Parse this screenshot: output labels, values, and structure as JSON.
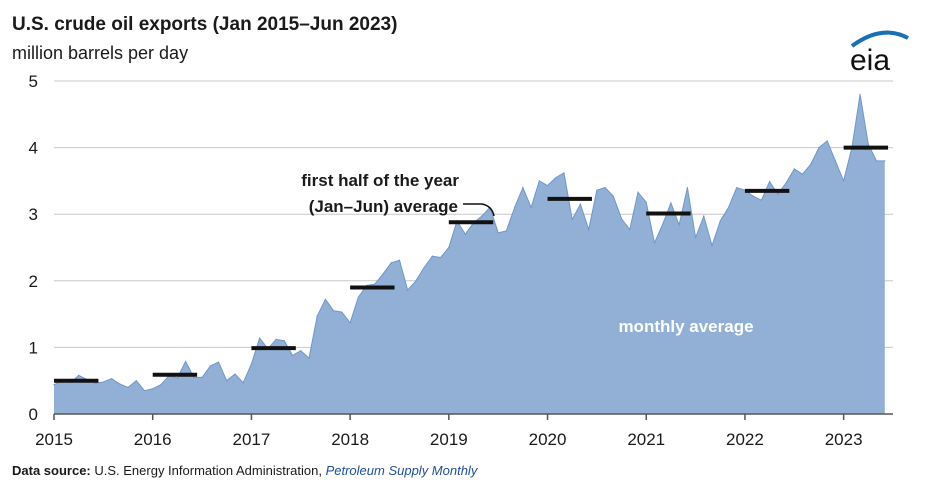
{
  "header": {
    "title": "U.S. crude oil exports (Jan 2015–Jun 2023)",
    "subtitle": "million barrels per day"
  },
  "logo": {
    "text": "eia"
  },
  "source": {
    "label": "Data source:",
    "text": " U.S. Energy Information Administration, ",
    "publication": "Petroleum Supply Monthly"
  },
  "colors": {
    "area": "#92b0d6",
    "area_line": "#6f97c8",
    "avg_bar": "#111111",
    "grid": "#c8c8c8",
    "logo_blue": "#1b6fb3"
  },
  "chart_data": {
    "type": "area",
    "title": "U.S. crude oil exports (Jan 2015–Jun 2023)",
    "ylabel": "million barrels per day",
    "ylim": [
      0,
      5
    ],
    "yticks": [
      0,
      1,
      2,
      3,
      4,
      5
    ],
    "xlim": [
      2015,
      2023.5
    ],
    "xticks": [
      "2015",
      "2016",
      "2017",
      "2018",
      "2019",
      "2020",
      "2021",
      "2022",
      "2023"
    ],
    "grid": true,
    "annotations": [
      {
        "text_lines": [
          "first half of the year",
          "(Jan–Jun) average"
        ],
        "points_to": "2019 first-half average"
      },
      {
        "text": "monthly average"
      }
    ],
    "series": [
      {
        "name": "monthly average",
        "kind": "area",
        "start": "2015-01",
        "frequency": "monthly",
        "values": [
          0.44,
          0.5,
          0.47,
          0.58,
          0.52,
          0.46,
          0.48,
          0.53,
          0.45,
          0.4,
          0.5,
          0.35,
          0.38,
          0.44,
          0.58,
          0.54,
          0.79,
          0.55,
          0.55,
          0.72,
          0.78,
          0.5,
          0.6,
          0.47,
          0.75,
          1.14,
          0.98,
          1.12,
          1.1,
          0.88,
          0.95,
          0.84,
          1.47,
          1.72,
          1.55,
          1.53,
          1.37,
          1.75,
          1.93,
          1.95,
          2.1,
          2.27,
          2.31,
          1.86,
          2.0,
          2.2,
          2.37,
          2.35,
          2.5,
          2.9,
          2.7,
          2.87,
          2.97,
          3.1,
          2.72,
          2.75,
          3.1,
          3.4,
          3.1,
          3.5,
          3.43,
          3.55,
          3.62,
          2.92,
          3.15,
          2.77,
          3.36,
          3.4,
          3.27,
          2.93,
          2.77,
          3.33,
          3.18,
          2.57,
          2.85,
          3.17,
          2.84,
          3.4,
          2.65,
          2.97,
          2.53,
          2.9,
          3.1,
          3.4,
          3.36,
          3.27,
          3.21,
          3.49,
          3.3,
          3.47,
          3.68,
          3.6,
          3.75,
          4.0,
          4.1,
          3.8,
          3.5,
          4.0,
          4.8,
          4.05,
          3.8,
          3.8
        ]
      },
      {
        "name": "first half of the year (Jan–Jun) average",
        "kind": "segments",
        "values": [
          {
            "year": 2015,
            "value": 0.5
          },
          {
            "year": 2016,
            "value": 0.59
          },
          {
            "year": 2017,
            "value": 0.99
          },
          {
            "year": 2018,
            "value": 1.9
          },
          {
            "year": 2019,
            "value": 2.88
          },
          {
            "year": 2020,
            "value": 3.23
          },
          {
            "year": 2021,
            "value": 3.01
          },
          {
            "year": 2022,
            "value": 3.35
          },
          {
            "year": 2023,
            "value": 4.0
          }
        ]
      }
    ]
  }
}
